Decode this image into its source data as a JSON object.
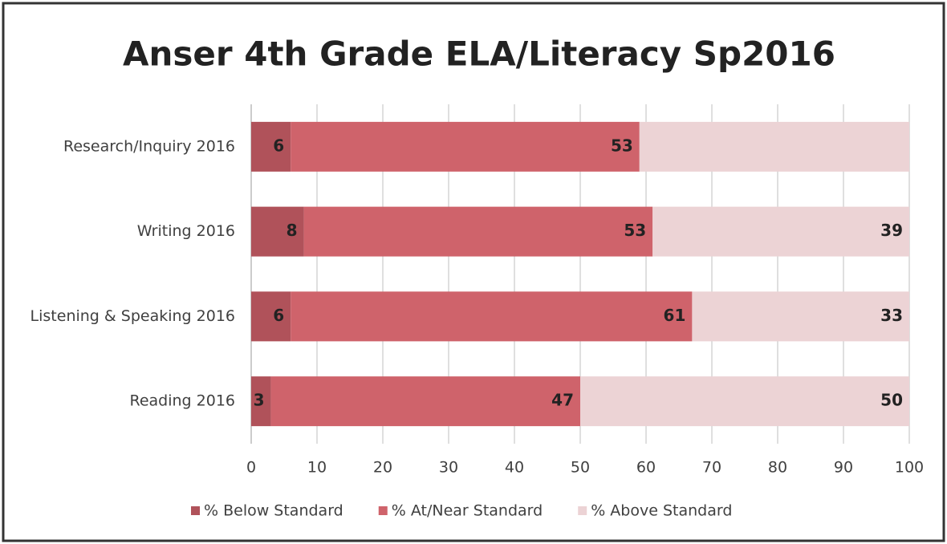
{
  "chart_data": {
    "type": "stacked_bar_horizontal",
    "title": "Anser 4th Grade ELA/Literacy Sp2016",
    "categories": [
      "Research/Inquiry 2016",
      "Writing 2016",
      "Listening & Speaking 2016",
      "Reading 2016"
    ],
    "series": [
      {
        "name": "% Below Standard",
        "color": "#b0525a",
        "values": [
          6,
          8,
          6,
          3
        ]
      },
      {
        "name": "% At/Near Standard",
        "color": "#cf636b",
        "values": [
          53,
          53,
          61,
          47
        ]
      },
      {
        "name": "% Above Standard",
        "color": "#ecd3d5",
        "values": [
          41,
          39,
          33,
          50
        ],
        "value_labels": [
          null,
          "39",
          "33",
          "50"
        ]
      }
    ],
    "xlim": [
      0,
      100
    ],
    "xticks": [
      0,
      10,
      20,
      30,
      40,
      50,
      60,
      70,
      80,
      90,
      100
    ],
    "grid": true,
    "legend": "bottom"
  }
}
